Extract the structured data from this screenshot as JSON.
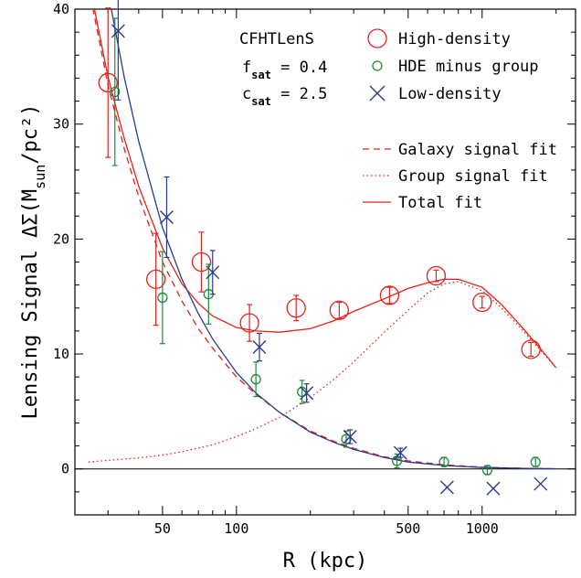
{
  "chart_data": {
    "type": "scatter",
    "xlabel": "R (kpc)",
    "ylabel": "Lensing Signal ΔΣ(M_sun/pc²)",
    "x_scale": "log",
    "xlim": [
      22,
      2400
    ],
    "ylim": [
      -4,
      40
    ],
    "x_ticks": [
      50,
      100,
      500,
      1000
    ],
    "x_tick_labels": [
      "50",
      "100",
      "500",
      "1000"
    ],
    "y_ticks": [
      0,
      10,
      20,
      30,
      40
    ],
    "y_tick_labels": [
      "0",
      "10",
      "20",
      "30",
      "40"
    ],
    "annotation": {
      "survey": "CFHTLenS",
      "fsat_label": "f",
      "fsat_sub": "sat",
      "fsat_value": " = 0.4",
      "csat_label": "c",
      "csat_sub": "sat",
      "csat_value": " = 2.5"
    },
    "series": [
      {
        "name": "High-density",
        "marker": "big-circle",
        "color": "#e8201a",
        "points": [
          {
            "x": 30,
            "y": 33.6,
            "err": 6.5
          },
          {
            "x": 47,
            "y": 16.5,
            "err": 4.0
          },
          {
            "x": 72,
            "y": 18.0,
            "err": 2.6
          },
          {
            "x": 113,
            "y": 12.7,
            "err": 1.6
          },
          {
            "x": 175,
            "y": 14.0,
            "err": 1.1
          },
          {
            "x": 262,
            "y": 13.8,
            "err": 0.7
          },
          {
            "x": 420,
            "y": 15.1,
            "err": 0.7
          },
          {
            "x": 650,
            "y": 16.8,
            "err": 0.5
          },
          {
            "x": 1000,
            "y": 14.5,
            "err": 0.5
          },
          {
            "x": 1580,
            "y": 10.4,
            "err": 0.6
          }
        ]
      },
      {
        "name": "HDE minus group",
        "marker": "small-circle",
        "color": "#1e8a3a",
        "points": [
          {
            "x": 32,
            "y": 32.8,
            "err": 6.4
          },
          {
            "x": 50,
            "y": 14.9,
            "err": 4.0
          },
          {
            "x": 77,
            "y": 15.2,
            "err": 2.6
          },
          {
            "x": 120,
            "y": 7.8,
            "err": 1.5
          },
          {
            "x": 185,
            "y": 6.7,
            "err": 1.0
          },
          {
            "x": 280,
            "y": 2.6,
            "err": 0.7
          },
          {
            "x": 450,
            "y": 0.7,
            "err": 0.6
          },
          {
            "x": 700,
            "y": 0.6,
            "err": 0.4
          },
          {
            "x": 1050,
            "y": -0.1,
            "err": 0.4
          },
          {
            "x": 1650,
            "y": 0.6,
            "err": 0.4
          }
        ]
      },
      {
        "name": "Low-density",
        "marker": "cross",
        "color": "#2a3a8c",
        "points": [
          {
            "x": 33,
            "y": 38.1,
            "err": 6.0
          },
          {
            "x": 52,
            "y": 21.9,
            "err": 3.5
          },
          {
            "x": 80,
            "y": 17.1,
            "err": 1.9
          },
          {
            "x": 124,
            "y": 10.6,
            "err": 1.2
          },
          {
            "x": 193,
            "y": 6.6,
            "err": 0.8
          },
          {
            "x": 290,
            "y": 2.8,
            "err": 0.6
          },
          {
            "x": 465,
            "y": 1.4,
            "err": 0.4
          },
          {
            "x": 720,
            "y": -1.6,
            "err": 0.0
          },
          {
            "x": 1110,
            "y": -1.7,
            "err": 0.0
          },
          {
            "x": 1730,
            "y": -1.3,
            "err": 0.0
          }
        ]
      }
    ],
    "fit_lines": [
      {
        "name": "Galaxy signal fit",
        "style": "dashed",
        "color": "#e8201a",
        "x": [
          25,
          30,
          35,
          40,
          50,
          60,
          70,
          80,
          100,
          120,
          150,
          200,
          250,
          300,
          400,
          500,
          700,
          1000,
          1500,
          2000
        ],
        "y": [
          42.0,
          33.4,
          27.8,
          23.7,
          18.0,
          14.6,
          12.2,
          10.5,
          8.0,
          6.5,
          4.9,
          3.3,
          2.4,
          1.8,
          1.05,
          0.7,
          0.35,
          0.15,
          0.05,
          0.02
        ]
      },
      {
        "name": "Group signal fit",
        "style": "dotted",
        "color": "#e8201a",
        "x": [
          25,
          30,
          40,
          50,
          60,
          80,
          100,
          120,
          150,
          200,
          250,
          300,
          400,
          500,
          600,
          700,
          800,
          1000,
          1200,
          1500,
          1800,
          2000
        ],
        "y": [
          0.6,
          0.75,
          0.95,
          1.2,
          1.5,
          2.1,
          2.8,
          3.5,
          4.5,
          6.2,
          7.8,
          9.3,
          11.9,
          13.8,
          15.3,
          16.1,
          16.3,
          15.5,
          14.0,
          11.8,
          9.9,
          8.8
        ]
      },
      {
        "name": "Total fit",
        "style": "solid",
        "color": "#e8201a",
        "x": [
          25,
          30,
          35,
          40,
          50,
          60,
          70,
          80,
          100,
          120,
          150,
          200,
          250,
          300,
          400,
          500,
          600,
          700,
          800,
          1000,
          1200,
          1500,
          1800,
          2000
        ],
        "y": [
          42.6,
          34.1,
          28.7,
          24.6,
          19.2,
          16.1,
          14.4,
          13.3,
          12.3,
          12.0,
          11.9,
          12.2,
          12.9,
          13.7,
          14.8,
          15.7,
          16.2,
          16.5,
          16.5,
          15.8,
          14.3,
          12.0,
          10.0,
          8.8
        ]
      },
      {
        "name": "",
        "style": "solid",
        "color": "#2a3a8c",
        "x": [
          30,
          35,
          40,
          50,
          60,
          70,
          80,
          100,
          120,
          150,
          200,
          250,
          300,
          400,
          500,
          700,
          1000,
          1500,
          2000
        ],
        "y": [
          41.5,
          34.0,
          28.5,
          21.0,
          16.5,
          13.5,
          11.3,
          8.4,
          6.6,
          4.9,
          3.2,
          2.3,
          1.7,
          1.0,
          0.6,
          0.3,
          0.12,
          0.04,
          0.02
        ]
      }
    ],
    "legend_placement": "top-right"
  }
}
